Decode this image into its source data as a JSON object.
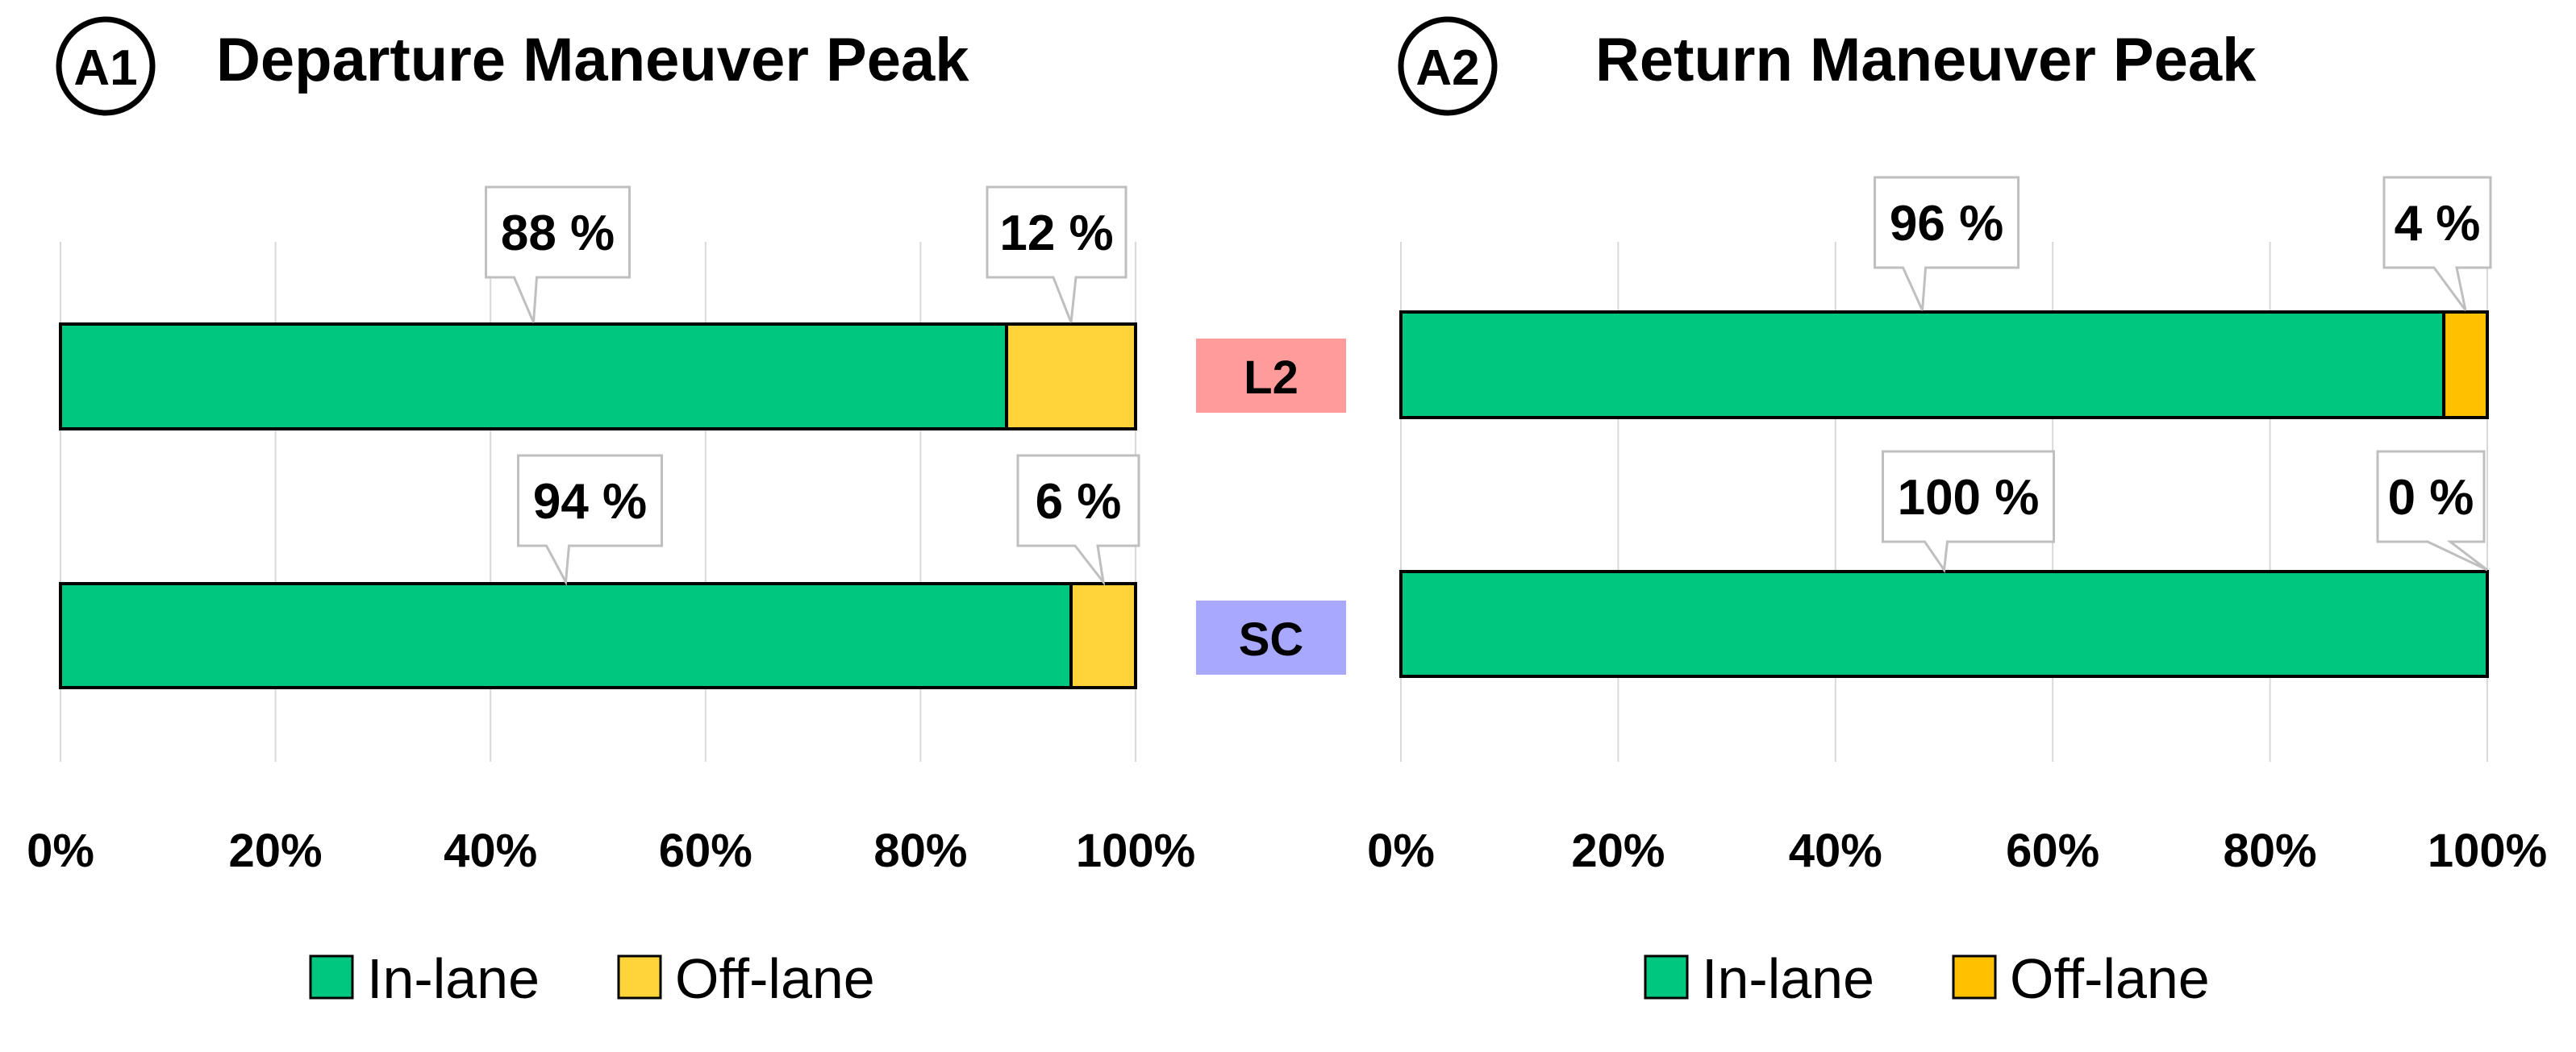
{
  "colors": {
    "in_lane": "#00C780",
    "off_lane_left": "#FFD43B",
    "off_lane_right": "#FFC000",
    "label_l2": "#FF9B9B",
    "label_sc": "#A8A8FF"
  },
  "row_labels": [
    "L2",
    "SC"
  ],
  "chart_data": [
    {
      "type": "bar",
      "orientation": "horizontal",
      "stacked": true,
      "badge": "A1",
      "title": "Departure Maneuver Peak",
      "categories": [
        "L2",
        "SC"
      ],
      "series": [
        {
          "name": "In-lane",
          "values": [
            88,
            94
          ]
        },
        {
          "name": "Off-lane",
          "values": [
            12,
            6
          ]
        }
      ],
      "data_labels": [
        [
          "88 %",
          "94 %"
        ],
        [
          "12 %",
          "6 %"
        ]
      ],
      "xlim": [
        0,
        100
      ],
      "xticks": [
        "0%",
        "20%",
        "40%",
        "60%",
        "80%",
        "100%"
      ],
      "grid": true,
      "legend_position": "bottom"
    },
    {
      "type": "bar",
      "orientation": "horizontal",
      "stacked": true,
      "badge": "A2",
      "title": "Return Maneuver Peak",
      "categories": [
        "L2",
        "SC"
      ],
      "series": [
        {
          "name": "In-lane",
          "values": [
            96,
            100
          ]
        },
        {
          "name": "Off-lane",
          "values": [
            4,
            0
          ]
        }
      ],
      "data_labels": [
        [
          "96 %",
          "100 %"
        ],
        [
          "4 %",
          "0 %"
        ]
      ],
      "xlim": [
        0,
        100
      ],
      "xticks": [
        "0%",
        "20%",
        "40%",
        "60%",
        "80%",
        "100%"
      ],
      "grid": true,
      "legend_position": "bottom"
    }
  ]
}
